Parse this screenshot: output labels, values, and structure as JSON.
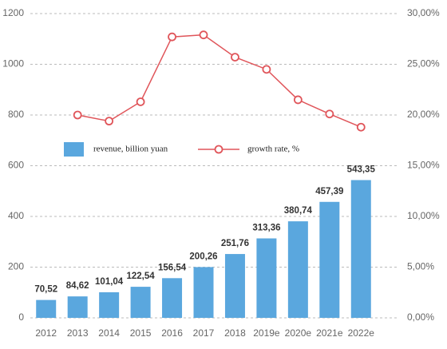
{
  "chart_data": {
    "type": "bar-line",
    "categories": [
      "2012",
      "2013",
      "2014",
      "2015",
      "2016",
      "2017",
      "2018",
      "2019e",
      "2020e",
      "2021e",
      "2022e"
    ],
    "series": [
      {
        "name": "revenue, billion yuan",
        "type": "bar",
        "color": "#5aa7de",
        "axis": "y",
        "values": [
          70.52,
          84.62,
          101.04,
          122.54,
          156.54,
          200.26,
          251.76,
          313.36,
          380.74,
          457.39,
          543.35
        ],
        "value_labels": [
          "70,52",
          "84,62",
          "101,04",
          "122,54",
          "156,54",
          "200,26",
          "251,76",
          "313,36",
          "380,74",
          "457,39",
          "543,35"
        ]
      },
      {
        "name": "growth rate, %",
        "type": "line",
        "color": "#e0555a",
        "axis": "y2",
        "values": [
          null,
          20.0,
          19.4,
          21.3,
          27.7,
          27.9,
          25.7,
          24.5,
          21.5,
          20.1,
          18.8
        ]
      }
    ],
    "ylim": [
      0,
      1200
    ],
    "yticks": [
      0,
      200,
      400,
      600,
      800,
      1000,
      1200
    ],
    "y2lim": [
      0,
      30
    ],
    "y2ticks": [
      {
        "value": 0,
        "label": "0,00%"
      },
      {
        "value": 5,
        "label": "5,00%"
      },
      {
        "value": 10,
        "label": "10,00%"
      },
      {
        "value": 15,
        "label": "15,00%"
      },
      {
        "value": 20,
        "label": "20,00%"
      },
      {
        "value": 25,
        "label": "25,00%"
      },
      {
        "value": 30,
        "label": "30,00%"
      }
    ],
    "grid": true,
    "legend": "center"
  }
}
